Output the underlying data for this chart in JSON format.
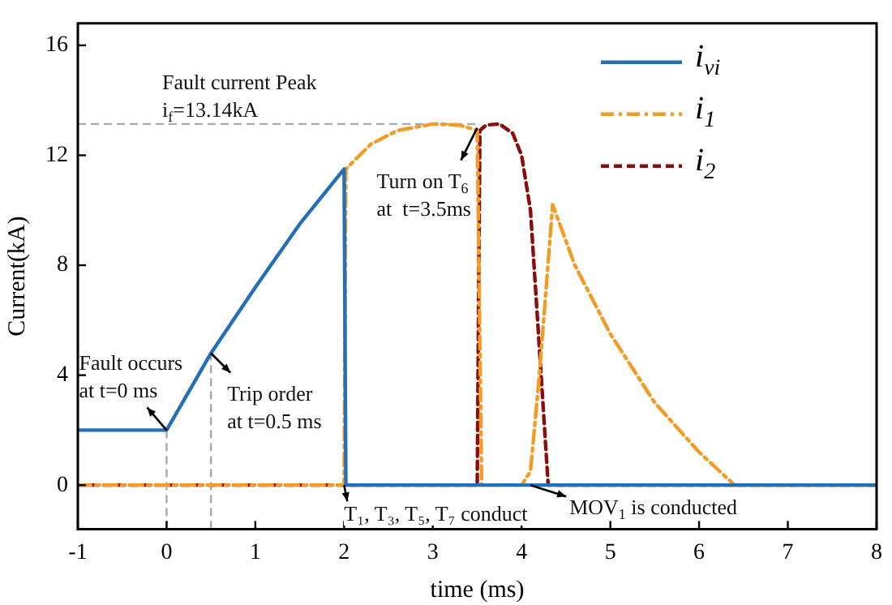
{
  "chart_data": {
    "type": "line",
    "xlabel": "time (ms)",
    "ylabel": "Current(kA)",
    "xlim": [
      -1,
      8
    ],
    "ylim": [
      -1.6,
      16.8
    ],
    "xticks": [
      -1,
      0,
      1,
      2,
      3,
      4,
      5,
      6,
      7,
      8
    ],
    "yticks": [
      0,
      4,
      8,
      12,
      16
    ],
    "grid": false,
    "legend": "top right",
    "marker": "none",
    "series": [
      {
        "name": "i$_{vi}$",
        "color": "#2470b8",
        "line_style": "solid",
        "x": [
          -1,
          0,
          0.5,
          1,
          1.5,
          2,
          2.02,
          8
        ],
        "values": [
          2,
          2,
          4.8,
          7.2,
          9.5,
          11.5,
          0,
          0
        ]
      },
      {
        "name": "i$_{1}$",
        "color": "#f39b22",
        "line_style": "dashdot",
        "x": [
          -1,
          2,
          2.02,
          2.3,
          2.6,
          3,
          3.3,
          3.5,
          3.55,
          4,
          4.1,
          4.2,
          4.35,
          4.6,
          5,
          5.5,
          6,
          6.4,
          8
        ],
        "values": [
          0,
          0,
          11.5,
          12.4,
          12.9,
          13.14,
          13.1,
          12.9,
          0,
          0,
          0.5,
          4,
          10.2,
          8,
          5.5,
          3,
          1.2,
          0,
          0
        ]
      },
      {
        "name": "i$_{2}$",
        "color": "#8b0d0d",
        "line_style": "dashed",
        "x": [
          -1,
          3.5,
          3.53,
          3.6,
          3.75,
          3.9,
          4,
          4.1,
          4.2,
          4.3,
          8
        ],
        "values": [
          0,
          0,
          12.9,
          13.1,
          13.14,
          12.8,
          12,
          10,
          5,
          0,
          0
        ]
      }
    ],
    "ref_lines": [
      {
        "axis": "y",
        "value": 13.14,
        "label": "Fault current Peak\ni$_{f}$=13.14kA",
        "color": "#aaaaaa",
        "line_style": "dashed"
      },
      {
        "axis": "x",
        "value": 0,
        "label": null,
        "color": "#aaaaaa",
        "line_style": "dashed"
      },
      {
        "axis": "x",
        "value": 0.5,
        "label": null,
        "color": "#aaaaaa",
        "line_style": "dashed"
      }
    ],
    "annotations": [
      {
        "text": "Fault occurs\nat t=0 ms",
        "x": 0,
        "y": 2
      },
      {
        "text": "Trip order\nat t=0.5 ms",
        "x": 0.5,
        "y": 4.8
      },
      {
        "text": "Turn on T$_{6}$\nat  t=3.5ms",
        "x": 3.5,
        "y": 13
      },
      {
        "text": "T₁, T₃, T₅, T₇ conduct",
        "x": 2,
        "y": 0
      },
      {
        "text": "MOV$_{1}$ is conducted",
        "x": 4.1,
        "y": 0
      }
    ]
  }
}
